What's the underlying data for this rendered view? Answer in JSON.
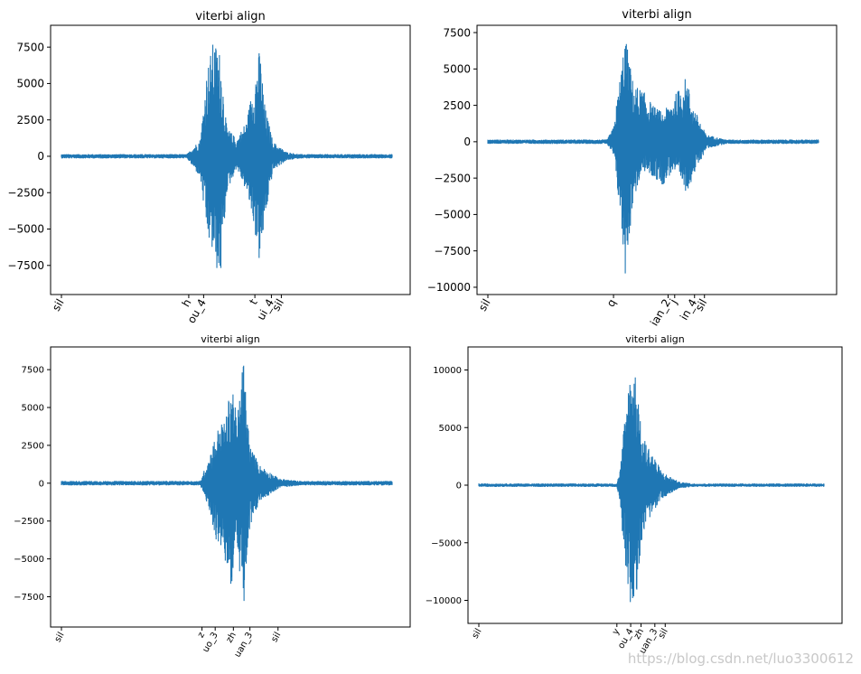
{
  "colors": {
    "series": "#1f77b4",
    "axes": "#000000",
    "background": "#ffffff"
  },
  "watermark": "https://blog.csdn.net/luo3300612",
  "chart_data": [
    {
      "type": "line",
      "title": "viterbi align",
      "xlabel": "",
      "ylabel": "",
      "ylim": [
        -9500,
        9000
      ],
      "yticks": [
        -7500,
        -5000,
        -2500,
        0,
        2500,
        5000,
        7500
      ],
      "ytick_labels": [
        "−7500",
        "−5000",
        "−2500",
        "0",
        "2500",
        "5000",
        "7500"
      ],
      "x_range": [
        0,
        1
      ],
      "phone_ticks": [
        {
          "label": "sil",
          "x": 0.0
        },
        {
          "label": "h",
          "x": 0.385
        },
        {
          "label": "ou_4",
          "x": 0.43
        },
        {
          "label": "t",
          "x": 0.585
        },
        {
          "label": "ui_4",
          "x": 0.635
        },
        {
          "label": "sil",
          "x": 0.665
        }
      ],
      "envelope": [
        {
          "x": 0.0,
          "min": -150,
          "max": 150
        },
        {
          "x": 0.38,
          "min": -150,
          "max": 150
        },
        {
          "x": 0.42,
          "min": -1500,
          "max": 1200
        },
        {
          "x": 0.44,
          "min": -5500,
          "max": 6000
        },
        {
          "x": 0.46,
          "min": -7000,
          "max": 8000
        },
        {
          "x": 0.48,
          "min": -8800,
          "max": 7200
        },
        {
          "x": 0.5,
          "min": -2500,
          "max": 2000
        },
        {
          "x": 0.53,
          "min": -800,
          "max": 1200
        },
        {
          "x": 0.56,
          "min": -2500,
          "max": 2500
        },
        {
          "x": 0.58,
          "min": -4500,
          "max": 5000
        },
        {
          "x": 0.6,
          "min": -7600,
          "max": 7500
        },
        {
          "x": 0.615,
          "min": -4500,
          "max": 3500
        },
        {
          "x": 0.64,
          "min": -1000,
          "max": 1000
        },
        {
          "x": 0.68,
          "min": -300,
          "max": 300
        },
        {
          "x": 0.72,
          "min": -150,
          "max": 150
        },
        {
          "x": 1.0,
          "min": -150,
          "max": 150
        }
      ]
    },
    {
      "type": "line",
      "title": "viterbi align",
      "xlabel": "",
      "ylabel": "",
      "ylim": [
        -10500,
        8000
      ],
      "yticks": [
        -10000,
        -7500,
        -5000,
        -2500,
        0,
        2500,
        5000,
        7500
      ],
      "ytick_labels": [
        "−10000",
        "−7500",
        "−5000",
        "−2500",
        "0",
        "2500",
        "5000",
        "7500"
      ],
      "x_range": [
        0,
        1
      ],
      "phone_ticks": [
        {
          "label": "sil",
          "x": 0.0
        },
        {
          "label": "q",
          "x": 0.38
        },
        {
          "label": "ian_2",
          "x": 0.545
        },
        {
          "label": "j",
          "x": 0.565
        },
        {
          "label": "in_4",
          "x": 0.625
        },
        {
          "label": "sil",
          "x": 0.655
        }
      ],
      "envelope": [
        {
          "x": 0.0,
          "min": -150,
          "max": 150
        },
        {
          "x": 0.36,
          "min": -150,
          "max": 150
        },
        {
          "x": 0.38,
          "min": -1000,
          "max": 1000
        },
        {
          "x": 0.4,
          "min": -5000,
          "max": 4500
        },
        {
          "x": 0.415,
          "min": -9300,
          "max": 7400
        },
        {
          "x": 0.44,
          "min": -4000,
          "max": 4000
        },
        {
          "x": 0.47,
          "min": -2000,
          "max": 3500
        },
        {
          "x": 0.5,
          "min": -2500,
          "max": 2500
        },
        {
          "x": 0.53,
          "min": -3000,
          "max": 2000
        },
        {
          "x": 0.56,
          "min": -2000,
          "max": 3000
        },
        {
          "x": 0.6,
          "min": -3500,
          "max": 4500
        },
        {
          "x": 0.62,
          "min": -2500,
          "max": 2500
        },
        {
          "x": 0.66,
          "min": -500,
          "max": 500
        },
        {
          "x": 0.72,
          "min": -150,
          "max": 150
        },
        {
          "x": 1.0,
          "min": -150,
          "max": 150
        }
      ]
    },
    {
      "type": "line",
      "title": "viterbi align",
      "xlabel": "",
      "ylabel": "",
      "ylim": [
        -9500,
        9000
      ],
      "yticks": [
        -7500,
        -5000,
        -2500,
        0,
        2500,
        5000,
        7500
      ],
      "ytick_labels": [
        "−7500",
        "−5000",
        "−2500",
        "0",
        "2500",
        "5000",
        "7500"
      ],
      "x_range": [
        0,
        1
      ],
      "phone_ticks": [
        {
          "label": "sil",
          "x": 0.0
        },
        {
          "label": "z",
          "x": 0.425
        },
        {
          "label": "uo_3",
          "x": 0.465
        },
        {
          "label": "zh",
          "x": 0.52
        },
        {
          "label": "uan_3",
          "x": 0.57
        },
        {
          "label": "sil",
          "x": 0.655
        }
      ],
      "envelope": [
        {
          "x": 0.0,
          "min": -150,
          "max": 150
        },
        {
          "x": 0.42,
          "min": -150,
          "max": 150
        },
        {
          "x": 0.45,
          "min": -2000,
          "max": 2000
        },
        {
          "x": 0.47,
          "min": -4000,
          "max": 3500
        },
        {
          "x": 0.5,
          "min": -5500,
          "max": 4500
        },
        {
          "x": 0.515,
          "min": -7300,
          "max": 7400
        },
        {
          "x": 0.53,
          "min": -3500,
          "max": 4000
        },
        {
          "x": 0.55,
          "min": -8800,
          "max": 8400
        },
        {
          "x": 0.57,
          "min": -3000,
          "max": 2500
        },
        {
          "x": 0.6,
          "min": -1200,
          "max": 1200
        },
        {
          "x": 0.66,
          "min": -300,
          "max": 300
        },
        {
          "x": 0.72,
          "min": -150,
          "max": 150
        },
        {
          "x": 1.0,
          "min": -150,
          "max": 150
        }
      ]
    },
    {
      "type": "line",
      "title": "viterbi align",
      "xlabel": "",
      "ylabel": "",
      "ylim": [
        -12000,
        12000
      ],
      "yticks": [
        -10000,
        -5000,
        0,
        5000,
        10000
      ],
      "ytick_labels": [
        "−10000",
        "−5000",
        "0",
        "5000",
        "10000"
      ],
      "x_range": [
        0,
        1
      ],
      "phone_ticks": [
        {
          "label": "sil",
          "x": 0.0
        },
        {
          "label": "y",
          "x": 0.4
        },
        {
          "label": "ou_4",
          "x": 0.44
        },
        {
          "label": "zh",
          "x": 0.47
        },
        {
          "label": "uan_3",
          "x": 0.51
        },
        {
          "label": "sil",
          "x": 0.54
        }
      ],
      "envelope": [
        {
          "x": 0.0,
          "min": -150,
          "max": 150
        },
        {
          "x": 0.4,
          "min": -150,
          "max": 150
        },
        {
          "x": 0.41,
          "min": -1500,
          "max": 1500
        },
        {
          "x": 0.42,
          "min": -6000,
          "max": 5000
        },
        {
          "x": 0.44,
          "min": -10500,
          "max": 10800
        },
        {
          "x": 0.46,
          "min": -9000,
          "max": 9500
        },
        {
          "x": 0.47,
          "min": -5000,
          "max": 4500
        },
        {
          "x": 0.5,
          "min": -2500,
          "max": 3000
        },
        {
          "x": 0.53,
          "min": -1200,
          "max": 1200
        },
        {
          "x": 0.58,
          "min": -300,
          "max": 300
        },
        {
          "x": 0.62,
          "min": -150,
          "max": 150
        },
        {
          "x": 1.0,
          "min": -150,
          "max": 150
        }
      ]
    }
  ]
}
